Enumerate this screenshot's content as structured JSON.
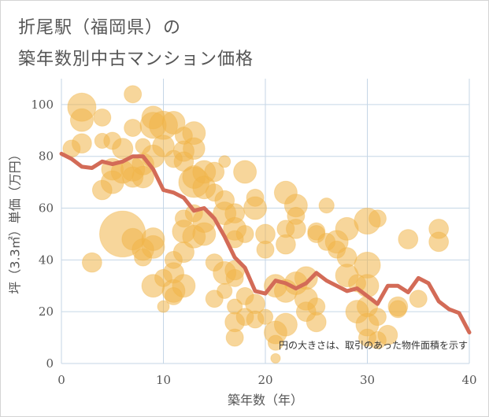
{
  "title_line1": "折尾駅（福岡県）の",
  "title_line2": "築年数別中古マンション価格",
  "colors": {
    "bubble": "#f0b449",
    "line": "#d36b57",
    "grid": "#c5d6e6",
    "text": "#555555"
  },
  "chart_data": {
    "type": "scatter",
    "xlabel": "築年数（年）",
    "ylabel": "坪（3.3㎡）単価（万円）",
    "xlim": [
      0,
      40
    ],
    "ylim": [
      0,
      110
    ],
    "xticks": [
      0,
      10,
      20,
      30,
      40
    ],
    "yticks": [
      0,
      20,
      40,
      60,
      80,
      100
    ],
    "grid": true,
    "annotation": "円の大きさは、取引のあった物件面積を示す",
    "bubbles": [
      [
        2,
        99,
        2
      ],
      [
        2,
        94,
        1.5
      ],
      [
        2,
        85,
        1.2
      ],
      [
        1,
        83,
        1
      ],
      [
        4,
        95,
        1
      ],
      [
        4,
        86,
        0.8
      ],
      [
        5,
        86,
        1
      ],
      [
        6,
        83,
        1.3
      ],
      [
        7,
        91,
        1
      ],
      [
        7,
        104,
        1
      ],
      [
        8,
        84,
        0.8
      ],
      [
        9,
        95,
        1.5
      ],
      [
        9,
        92,
        1.8
      ],
      [
        10,
        92,
        2
      ],
      [
        10,
        84,
        1.4
      ],
      [
        9,
        80,
        1.5
      ],
      [
        8,
        77,
        1.4
      ],
      [
        7,
        75,
        1.6
      ],
      [
        6,
        74,
        1.5
      ],
      [
        5,
        75,
        1.4
      ],
      [
        5,
        70,
        1.5
      ],
      [
        4,
        67,
        1.2
      ],
      [
        7,
        72,
        1.3
      ],
      [
        8,
        72,
        1.4
      ],
      [
        6,
        50,
        3.6
      ],
      [
        7,
        48,
        1.4
      ],
      [
        8,
        44,
        1.4
      ],
      [
        9,
        45,
        1.5
      ],
      [
        9,
        48,
        1.5
      ],
      [
        8,
        41,
        1
      ],
      [
        3,
        39,
        1.2
      ],
      [
        9,
        30,
        1.5
      ],
      [
        10,
        33,
        1
      ],
      [
        10,
        22,
        0.5
      ],
      [
        11,
        40,
        1
      ],
      [
        11,
        35,
        1.3
      ],
      [
        11,
        28,
        1.5
      ],
      [
        11,
        26,
        1
      ],
      [
        12,
        30,
        1.5
      ],
      [
        12,
        43,
        1.3
      ],
      [
        12,
        51,
        1.5
      ],
      [
        13,
        49,
        1.5
      ],
      [
        12,
        56,
        1
      ],
      [
        13,
        58,
        1
      ],
      [
        14,
        55,
        1.5
      ],
      [
        14,
        50,
        1.5
      ],
      [
        13,
        70,
        2.2
      ],
      [
        13,
        72,
        1.5
      ],
      [
        14,
        74,
        1.5
      ],
      [
        14,
        68,
        1.5
      ],
      [
        13,
        83,
        1.4
      ],
      [
        12,
        82,
        1.3
      ],
      [
        12,
        88,
        1
      ],
      [
        13,
        89,
        1.5
      ],
      [
        11,
        93,
        1.5
      ],
      [
        12,
        78,
        1.2
      ],
      [
        11,
        79,
        1
      ],
      [
        15,
        74,
        1.2
      ],
      [
        15,
        66,
        1
      ],
      [
        16,
        78,
        0.5
      ],
      [
        16,
        63,
        1.2
      ],
      [
        16,
        58,
        1.5
      ],
      [
        17,
        58,
        1.2
      ],
      [
        17,
        52,
        1.5
      ],
      [
        17,
        48,
        1
      ],
      [
        18,
        50,
        1
      ],
      [
        18,
        74,
        1.5
      ],
      [
        19,
        64,
        1
      ],
      [
        19,
        60,
        1.5
      ],
      [
        15,
        39,
        1
      ],
      [
        16,
        35,
        1.5
      ],
      [
        17,
        33,
        1
      ],
      [
        17,
        36,
        1.2
      ],
      [
        15,
        25,
        1
      ],
      [
        16,
        28,
        0.8
      ],
      [
        17,
        22,
        0.8
      ],
      [
        17,
        16,
        1.2
      ],
      [
        17,
        10,
        1
      ],
      [
        18,
        26,
        1
      ],
      [
        18,
        18,
        1
      ],
      [
        19,
        17,
        1
      ],
      [
        19,
        23,
        1.2
      ],
      [
        20,
        18,
        0.8
      ],
      [
        20,
        50,
        1.2
      ],
      [
        20,
        44,
        1
      ],
      [
        21,
        12,
        1.5
      ],
      [
        21,
        8,
        0.8
      ],
      [
        21,
        2,
        0.3
      ],
      [
        22,
        15,
        1.5
      ],
      [
        22,
        66,
        1.5
      ],
      [
        22,
        52,
        1
      ],
      [
        23,
        61,
        1.5
      ],
      [
        23,
        57,
        1
      ],
      [
        23,
        52,
        1.2
      ],
      [
        22,
        46,
        1.2
      ],
      [
        21,
        30,
        1.5
      ],
      [
        22,
        28,
        1.5
      ],
      [
        23,
        31,
        1.5
      ],
      [
        24,
        33,
        1.5
      ],
      [
        24,
        25,
        1.5
      ],
      [
        24,
        20,
        1.2
      ],
      [
        25,
        16,
        1.2
      ],
      [
        25,
        22,
        1
      ],
      [
        25,
        51,
        1
      ],
      [
        25,
        50,
        1
      ],
      [
        26,
        61,
        0.8
      ],
      [
        26,
        47,
        1
      ],
      [
        27,
        44,
        1
      ],
      [
        27,
        47,
        1.5
      ],
      [
        28,
        41,
        1.2
      ],
      [
        28,
        52,
        1.5
      ],
      [
        28,
        34,
        1.5
      ],
      [
        29,
        31,
        1
      ],
      [
        29,
        20,
        1.5
      ],
      [
        30,
        55,
        1.8
      ],
      [
        31,
        56,
        1
      ],
      [
        30,
        38,
        1.8
      ],
      [
        30,
        30,
        1.5
      ],
      [
        30,
        22,
        1.3
      ],
      [
        30,
        15,
        1.5
      ],
      [
        30,
        10,
        1
      ],
      [
        31,
        18,
        1
      ],
      [
        31,
        9,
        1
      ],
      [
        32,
        11,
        1.2
      ],
      [
        33,
        22,
        1.2
      ],
      [
        33,
        21,
        1
      ],
      [
        34,
        48,
        1.2
      ],
      [
        35,
        25,
        1
      ],
      [
        37,
        52,
        1.2
      ],
      [
        37,
        47,
        1.2
      ]
    ],
    "trend": {
      "x": [
        0,
        1,
        2,
        3,
        4,
        5,
        6,
        7,
        8,
        9,
        10,
        11,
        12,
        13,
        14,
        15,
        16,
        17,
        18,
        19,
        20,
        21,
        22,
        23,
        24,
        25,
        26,
        27,
        28,
        29,
        30,
        31,
        32,
        33,
        34,
        35,
        36,
        37,
        38,
        39,
        40
      ],
      "y": [
        81,
        79,
        76,
        75.5,
        78,
        77,
        78,
        80,
        80,
        75,
        67,
        66,
        64,
        59,
        60,
        56,
        49,
        41,
        37,
        28,
        27,
        32,
        31,
        29,
        31,
        35,
        32,
        30,
        28,
        29,
        26,
        23,
        30,
        30,
        27.5,
        33,
        31,
        24,
        21,
        19.5,
        12
      ]
    }
  }
}
